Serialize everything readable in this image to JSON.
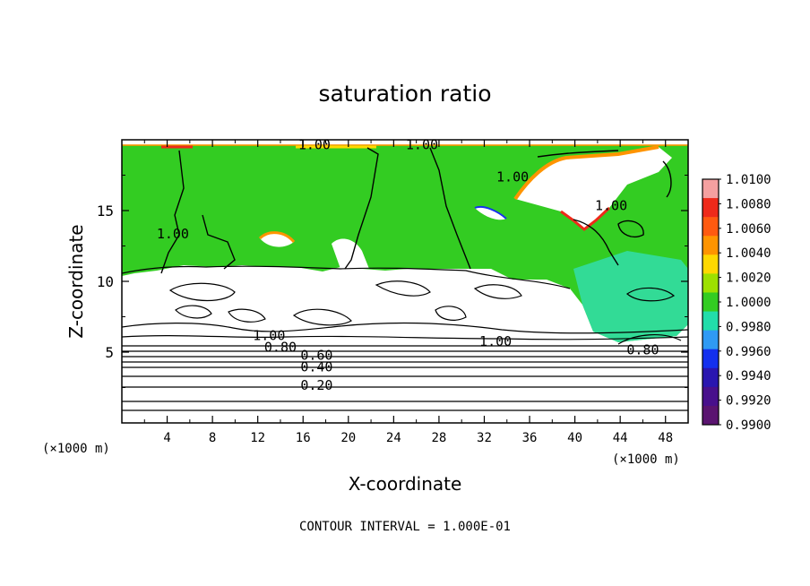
{
  "chart_data": {
    "type": "heatmap",
    "title": "saturation ratio",
    "xlabel": "X-coordinate",
    "ylabel": "Z-coordinate",
    "x_unit": "(×1000 m)",
    "y_unit": "(×1000 m)",
    "xlim": [
      0,
      50
    ],
    "ylim": [
      0,
      20
    ],
    "x_ticks": [
      4,
      8,
      12,
      16,
      20,
      24,
      28,
      32,
      36,
      40,
      44,
      48
    ],
    "y_ticks": [
      5,
      10,
      15
    ],
    "note": "CONTOUR INTERVAL = 1.000E-01",
    "colorbar": {
      "labels": [
        "1.0100",
        "1.0080",
        "1.0060",
        "1.0040",
        "1.0020",
        "1.0000",
        "0.9980",
        "0.9960",
        "0.9940",
        "0.9920",
        "0.9900"
      ],
      "colors": [
        "#f4a0a0",
        "#ee2a1a",
        "#fe5a10",
        "#ff9400",
        "#ffd800",
        "#9de000",
        "#33cc22",
        "#22ddaa",
        "#2f9af4",
        "#1430ee",
        "#2a16b0",
        "#48108c",
        "#5a1470"
      ]
    },
    "contour_labels": [
      {
        "text": "1.00",
        "x": 17.0,
        "y": 19.6
      },
      {
        "text": "1.00",
        "x": 26.5,
        "y": 19.6
      },
      {
        "text": "1.00",
        "x": 34.5,
        "y": 17.3
      },
      {
        "text": "1.00",
        "x": 43.2,
        "y": 15.3
      },
      {
        "text": "1.00",
        "x": 4.5,
        "y": 13.3
      },
      {
        "text": "1.00",
        "x": 13.0,
        "y": 6.1
      },
      {
        "text": "0.80",
        "x": 14.0,
        "y": 5.3
      },
      {
        "text": "0.60",
        "x": 17.2,
        "y": 4.7
      },
      {
        "text": "0.40",
        "x": 17.2,
        "y": 3.9
      },
      {
        "text": "0.20",
        "x": 17.2,
        "y": 2.6
      },
      {
        "text": "1.00",
        "x": 33.0,
        "y": 5.7
      },
      {
        "text": "0.80",
        "x": 46.0,
        "y": 5.1
      }
    ]
  }
}
